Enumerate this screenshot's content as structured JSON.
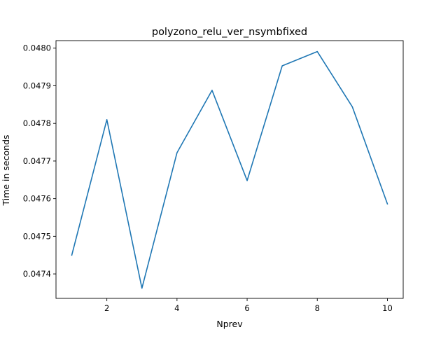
{
  "chart_data": {
    "type": "line",
    "title": "polyzono_relu_ver_nsymbfixed",
    "xlabel": "Nprev",
    "ylabel": "Time in seconds",
    "x": [
      1,
      2,
      3,
      4,
      5,
      6,
      7,
      8,
      9,
      10
    ],
    "series": [
      {
        "values": [
          0.04745,
          0.04781,
          0.047362,
          0.047722,
          0.047888,
          0.047648,
          0.047953,
          0.047991,
          0.047844,
          0.047586
        ],
        "color": "#1f77b4"
      }
    ],
    "xlim": [
      0.55,
      10.45
    ],
    "ylim": [
      0.047335,
      0.04802
    ],
    "x_ticks": [
      "2",
      "4",
      "6",
      "8",
      "10"
    ],
    "y_ticks": [
      "0.0474",
      "0.0475",
      "0.0476",
      "0.0477",
      "0.0478",
      "0.0479",
      "0.0480"
    ],
    "grid": false
  }
}
